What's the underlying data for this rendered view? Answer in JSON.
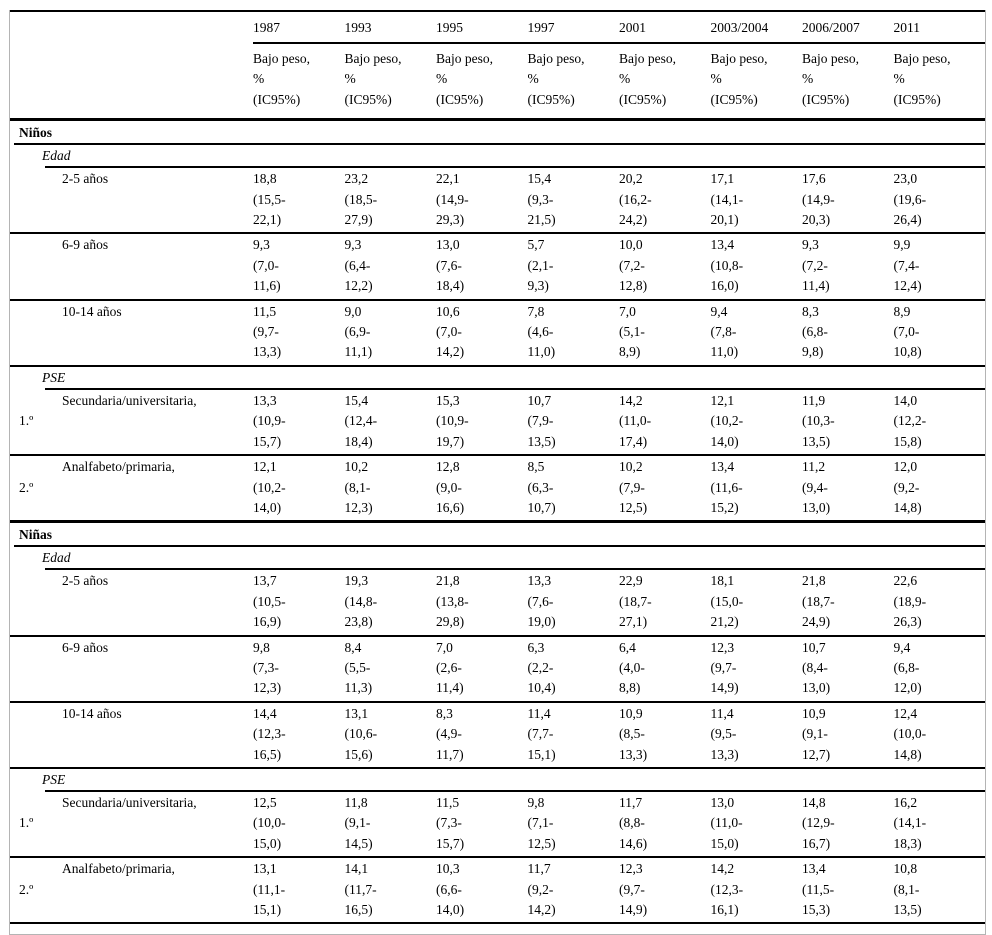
{
  "table": {
    "years": [
      "1987",
      "1993",
      "1995",
      "1997",
      "2001",
      "2003/2004",
      "2006/2007",
      "2011"
    ],
    "measure_header": "Bajo peso,\n%\n(IC95%)",
    "sections": [
      {
        "title": "Niños",
        "blocks": [
          {
            "subheader": "Edad",
            "rows": [
              {
                "label": "2-5 años",
                "label2": "",
                "cells": [
                  "18,8\n(15,5-\n22,1)",
                  "23,2\n(18,5-\n27,9)",
                  "22,1\n(14,9-\n29,3)",
                  "15,4\n(9,3-\n21,5)",
                  "20,2\n(16,2-\n24,2)",
                  "17,1\n(14,1-\n20,1)",
                  "17,6\n(14,9-\n20,3)",
                  "23,0\n(19,6-\n26,4)"
                ]
              },
              {
                "label": "6-9 años",
                "label2": "",
                "cells": [
                  "9,3\n(7,0-\n11,6)",
                  "9,3\n(6,4-\n12,2)",
                  "13,0\n(7,6-\n18,4)",
                  "5,7\n(2,1-\n9,3)",
                  "10,0\n(7,2-\n12,8)",
                  "13,4\n(10,8-\n16,0)",
                  "9,3\n(7,2-\n11,4)",
                  "9,9\n(7,4-\n12,4)"
                ]
              },
              {
                "label": "10-14 años",
                "label2": "",
                "cells": [
                  "11,5\n(9,7-\n13,3)",
                  "9,0\n(6,9-\n11,1)",
                  "10,6\n(7,0-\n14,2)",
                  "7,8\n(4,6-\n11,0)",
                  "7,0\n(5,1-\n8,9)",
                  "9,4\n(7,8-\n11,0)",
                  "8,3\n(6,8-\n9,8)",
                  "8,9\n(7,0-\n10,8)"
                ]
              }
            ]
          },
          {
            "subheader": "PSE",
            "rows": [
              {
                "label": "Secundaria/universitaria,",
                "label2": "1.º",
                "cells": [
                  "13,3\n(10,9-\n15,7)",
                  "15,4\n(12,4-\n18,4)",
                  "15,3\n(10,9-\n19,7)",
                  "10,7\n(7,9-\n13,5)",
                  "14,2\n(11,0-\n17,4)",
                  "12,1\n(10,2-\n14,0)",
                  "11,9\n(10,3-\n13,5)",
                  "14,0\n(12,2-\n15,8)"
                ]
              },
              {
                "label": "Analfabeto/primaria,",
                "label2": "2.º",
                "cells": [
                  "12,1\n(10,2-\n14,0)",
                  "10,2\n(8,1-\n12,3)",
                  "12,8\n(9,0-\n16,6)",
                  "8,5\n(6,3-\n10,7)",
                  "10,2\n(7,9-\n12,5)",
                  "13,4\n(11,6-\n15,2)",
                  "11,2\n(9,4-\n13,0)",
                  "12,0\n(9,2-\n14,8)"
                ]
              }
            ]
          }
        ]
      },
      {
        "title": "Niñas",
        "blocks": [
          {
            "subheader": "Edad",
            "rows": [
              {
                "label": "2-5 años",
                "label2": "",
                "cells": [
                  "13,7\n(10,5-\n16,9)",
                  "19,3\n(14,8-\n23,8)",
                  "21,8\n(13,8-\n29,8)",
                  "13,3\n(7,6-\n19,0)",
                  "22,9\n(18,7-\n27,1)",
                  "18,1\n(15,0-\n21,2)",
                  "21,8\n(18,7-\n24,9)",
                  "22,6\n(18,9-\n26,3)"
                ]
              },
              {
                "label": "6-9 años",
                "label2": "",
                "cells": [
                  "9,8\n(7,3-\n12,3)",
                  "8,4\n(5,5-\n11,3)",
                  "7,0\n(2,6-\n11,4)",
                  "6,3\n(2,2-\n10,4)",
                  "6,4\n(4,0-\n8,8)",
                  "12,3\n(9,7-\n14,9)",
                  "10,7\n(8,4-\n13,0)",
                  "9,4\n(6,8-\n12,0)"
                ]
              },
              {
                "label": "10-14 años",
                "label2": "",
                "cells": [
                  "14,4\n(12,3-\n16,5)",
                  "13,1\n(10,6-\n15,6)",
                  "8,3\n(4,9-\n11,7)",
                  "11,4\n(7,7-\n15,1)",
                  "10,9\n(8,5-\n13,3)",
                  "11,4\n(9,5-\n13,3)",
                  "10,9\n(9,1-\n12,7)",
                  "12,4\n(10,0-\n14,8)"
                ]
              }
            ]
          },
          {
            "subheader": "PSE",
            "rows": [
              {
                "label": "Secundaria/universitaria,",
                "label2": "1.º",
                "cells": [
                  "12,5\n(10,0-\n15,0)",
                  "11,8\n(9,1-\n14,5)",
                  "11,5\n(7,3-\n15,7)",
                  "9,8\n(7,1-\n12,5)",
                  "11,7\n(8,8-\n14,6)",
                  "13,0\n(11,0-\n15,0)",
                  "14,8\n(12,9-\n16,7)",
                  "16,2\n(14,1-\n18,3)"
                ]
              },
              {
                "label": "Analfabeto/primaria,",
                "label2": "2.º",
                "cells": [
                  "13,1\n(11,1-\n15,1)",
                  "14,1\n(11,7-\n16,5)",
                  "10,3\n(6,6-\n14,0)",
                  "11,7\n(9,2-\n14,2)",
                  "12,3\n(9,7-\n14,9)",
                  "14,2\n(12,3-\n16,1)",
                  "13,4\n(11,5-\n15,3)",
                  "10,8\n(8,1-\n13,5)"
                ]
              }
            ]
          }
        ]
      }
    ]
  }
}
